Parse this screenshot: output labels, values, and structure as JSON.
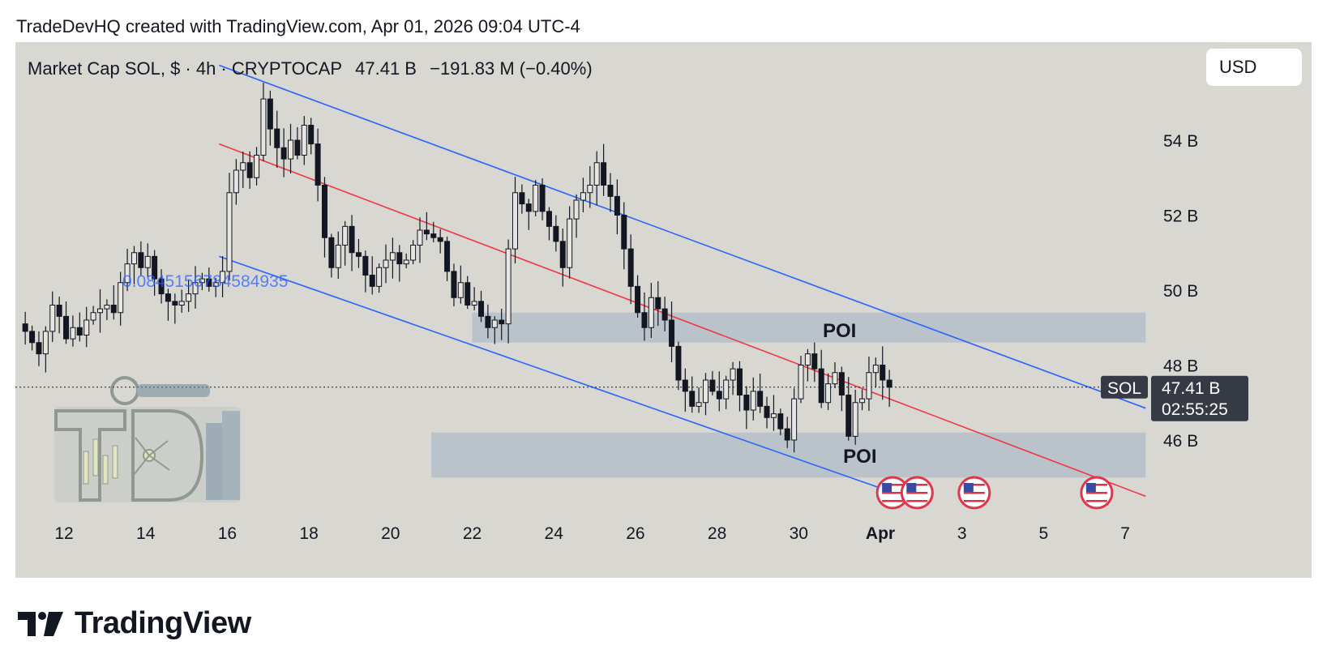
{
  "caption": "TradeDevHQ created with TradingView.com, Apr 01, 2026 09:04 UTC-4",
  "header": {
    "symbol": "Market Cap SOL, $ · 4h · CRYPTOCAP",
    "price": "47.41 B",
    "change": "−191.83 M (−0.40%)"
  },
  "currency_button": "USD",
  "price_tag": {
    "symbol": "SOL",
    "value": "47.41 B",
    "countdown": "02:55:25"
  },
  "overlay_text": "0.0845156784584935",
  "poi_labels": [
    "POI",
    "POI"
  ],
  "brand": "TradingView",
  "colors": {
    "background": "#d8d7d2",
    "channel": "#2962ff",
    "midline": "#f23645",
    "zone": "#b5bfc9",
    "candle": "#131722",
    "label_bg": "#363a45"
  },
  "chart_data": {
    "type": "candlestick",
    "timeframe": "4h",
    "y_unit": "B USD",
    "yticks": [
      "54 B",
      "52 B",
      "50 B",
      "48 B",
      "46 B"
    ],
    "ytick_values": [
      54,
      52,
      50,
      48,
      46
    ],
    "ylim": [
      44.2,
      55.6
    ],
    "xticks": [
      "12",
      "14",
      "16",
      "18",
      "20",
      "22",
      "24",
      "26",
      "28",
      "30",
      "Apr",
      "3",
      "5",
      "7"
    ],
    "xtick_days": [
      12,
      14,
      16,
      18,
      20,
      22,
      24,
      26,
      28,
      30,
      32,
      34,
      36,
      38
    ],
    "last_price": 47.41,
    "closes": [
      48.9,
      48.6,
      48.3,
      48.9,
      49.6,
      49.3,
      48.7,
      49.0,
      48.8,
      49.2,
      49.4,
      49.5,
      49.6,
      49.4,
      50.2,
      50.7,
      51.0,
      50.6,
      50.9,
      50.3,
      49.9,
      49.7,
      49.6,
      49.7,
      49.9,
      50.2,
      50.3,
      50.1,
      50.2,
      50.5,
      52.6,
      53.2,
      53.4,
      53.0,
      53.6,
      55.1,
      54.3,
      53.8,
      53.5,
      54.0,
      53.6,
      54.4,
      53.9,
      52.8,
      51.4,
      50.6,
      51.2,
      51.7,
      51.0,
      50.9,
      50.4,
      50.1,
      50.6,
      50.8,
      51.0,
      50.7,
      50.8,
      51.2,
      51.6,
      51.5,
      51.4,
      51.3,
      50.5,
      49.8,
      50.2,
      49.6,
      49.7,
      49.3,
      49.0,
      49.2,
      49.1,
      51.1,
      52.6,
      52.3,
      52.1,
      52.8,
      52.1,
      51.7,
      51.3,
      50.6,
      51.9,
      52.4,
      52.6,
      52.8,
      53.4,
      52.8,
      52.5,
      52.0,
      51.1,
      50.1,
      49.4,
      49.0,
      49.8,
      49.5,
      49.2,
      48.5,
      47.6,
      47.3,
      46.9,
      47.0,
      47.6,
      47.3,
      47.1,
      47.6,
      47.9,
      47.2,
      46.8,
      47.3,
      46.9,
      46.6,
      46.7,
      46.3,
      46.0,
      47.1,
      48.0,
      48.3,
      47.9,
      47.0,
      47.5,
      47.8,
      47.2,
      46.1,
      47.0,
      47.1,
      47.8,
      48.0,
      47.6,
      47.41
    ],
    "channel": {
      "upper": {
        "from": {
          "day": 15.8,
          "value": 56.0
        },
        "to": {
          "day": 38.5,
          "value": 46.85
        }
      },
      "middle": {
        "from": {
          "day": 15.8,
          "value": 53.9
        },
        "to": {
          "day": 38.5,
          "value": 44.5
        }
      },
      "lower": {
        "from": {
          "day": 15.8,
          "value": 50.9
        },
        "to": {
          "day": 33.1,
          "value": 44.3
        }
      }
    },
    "zones": [
      {
        "label": "POI",
        "from_day": 22.0,
        "to_day": 38.5,
        "low": 48.6,
        "high": 49.4
      },
      {
        "label": "POI",
        "from_day": 21.0,
        "to_day": 38.5,
        "low": 45.0,
        "high": 46.2
      }
    ],
    "event_markers_days": [
      32.3,
      32.9,
      34.3,
      37.3
    ]
  }
}
